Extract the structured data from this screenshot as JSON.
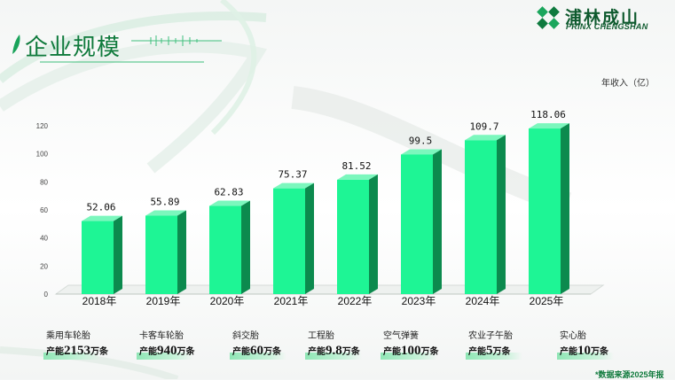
{
  "page": {
    "title": "企业规模",
    "unit_label": "年收入（亿）",
    "source_note": "*数据来源2025年报"
  },
  "brand": {
    "name": "浦林成山",
    "sub": "PRINX CHENGSHAN"
  },
  "colors": {
    "bar_front": "#1ef595",
    "bar_side": "#0c8a4e",
    "bar_top": "#7bf7bd",
    "accent": "#0f7a3c"
  },
  "chart_data": {
    "type": "bar",
    "categories": [
      "2018年",
      "2019年",
      "2020年",
      "2021年",
      "2022年",
      "2023年",
      "2024年",
      "2025年"
    ],
    "values": [
      52.06,
      55.89,
      62.83,
      75.37,
      81.52,
      99.5,
      109.7,
      118.06
    ],
    "value_labels": [
      "52.06",
      "55.89",
      "62.83",
      "75.37",
      "81.52",
      "99.5",
      "109.7",
      "118.06"
    ],
    "ylim": [
      0,
      120
    ],
    "yticks": [
      "0",
      "20",
      "40",
      "60",
      "80",
      "100",
      "120"
    ],
    "grid": false,
    "xlabel": "",
    "ylabel": ""
  },
  "products": [
    {
      "name": "乘用车轮胎",
      "cap_label": "产能",
      "cap_value": "2153",
      "cap_unit": "万条"
    },
    {
      "name": "卡客车轮胎",
      "cap_label": "产能",
      "cap_value": "940",
      "cap_unit": "万条"
    },
    {
      "name": "斜交胎",
      "cap_label": "产能",
      "cap_value": "60",
      "cap_unit": "万条"
    },
    {
      "name": "工程胎",
      "cap_label": "产能",
      "cap_value": "9.8",
      "cap_unit": "万条"
    },
    {
      "name": "空气弹簧",
      "cap_label": "产能",
      "cap_value": "100",
      "cap_unit": "万条"
    },
    {
      "name": "农业子午胎",
      "cap_label": "产能",
      "cap_value": "5",
      "cap_unit": "万条"
    },
    {
      "name": "实心胎",
      "cap_label": "产能",
      "cap_value": "10",
      "cap_unit": "万条"
    }
  ]
}
